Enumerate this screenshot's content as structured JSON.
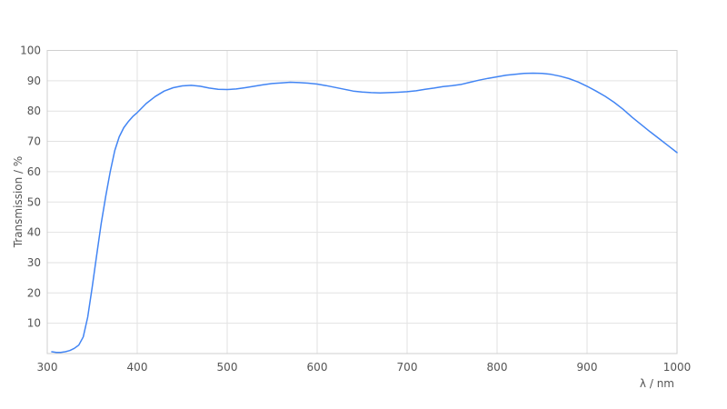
{
  "colors": {
    "line": "#4285f4",
    "grid": "#e2e2e2",
    "border": "#cfcfcf",
    "text": "#545454",
    "background": "#ffffff"
  },
  "chart_data": {
    "type": "line",
    "title": "",
    "xlabel": "λ / nm",
    "ylabel": "Transmission / %",
    "xlim": [
      300,
      1000
    ],
    "ylim": [
      0,
      100
    ],
    "x_ticks": [
      300,
      400,
      500,
      600,
      700,
      800,
      900,
      1000
    ],
    "y_ticks": [
      10,
      20,
      30,
      40,
      50,
      60,
      70,
      80,
      90,
      100
    ],
    "grid": true,
    "legend": "none",
    "series": [
      {
        "name": "Transmission",
        "color": "#4285f4",
        "x": [
          305,
          310,
          315,
          320,
          325,
          330,
          335,
          340,
          345,
          350,
          355,
          360,
          365,
          370,
          375,
          380,
          385,
          390,
          395,
          400,
          410,
          420,
          430,
          440,
          450,
          460,
          470,
          480,
          490,
          500,
          510,
          520,
          530,
          540,
          550,
          560,
          570,
          580,
          590,
          600,
          610,
          620,
          630,
          640,
          650,
          660,
          670,
          680,
          690,
          700,
          710,
          720,
          730,
          740,
          750,
          760,
          770,
          780,
          790,
          800,
          810,
          820,
          830,
          840,
          850,
          860,
          870,
          880,
          890,
          900,
          910,
          920,
          930,
          940,
          950,
          960,
          970,
          980,
          990,
          1000
        ],
        "y": [
          0.6,
          0.4,
          0.4,
          0.6,
          1.0,
          1.7,
          2.8,
          5.5,
          12,
          22,
          32.5,
          43,
          52,
          60,
          67,
          71.5,
          74.5,
          76.5,
          78.2,
          79.5,
          82.5,
          84.8,
          86.6,
          87.7,
          88.3,
          88.5,
          88.2,
          87.6,
          87.2,
          87.1,
          87.3,
          87.7,
          88.2,
          88.7,
          89.1,
          89.3,
          89.5,
          89.4,
          89.2,
          88.9,
          88.4,
          87.8,
          87.2,
          86.6,
          86.3,
          86.1,
          86.0,
          86.1,
          86.2,
          86.4,
          86.7,
          87.2,
          87.6,
          88.1,
          88.4,
          88.8,
          89.5,
          90.2,
          90.8,
          91.3,
          91.8,
          92.1,
          92.4,
          92.5,
          92.4,
          92.1,
          91.5,
          90.7,
          89.6,
          88.2,
          86.6,
          84.9,
          82.9,
          80.6,
          78.0,
          75.6,
          73.2,
          70.9,
          68.6,
          66.3
        ]
      }
    ]
  }
}
